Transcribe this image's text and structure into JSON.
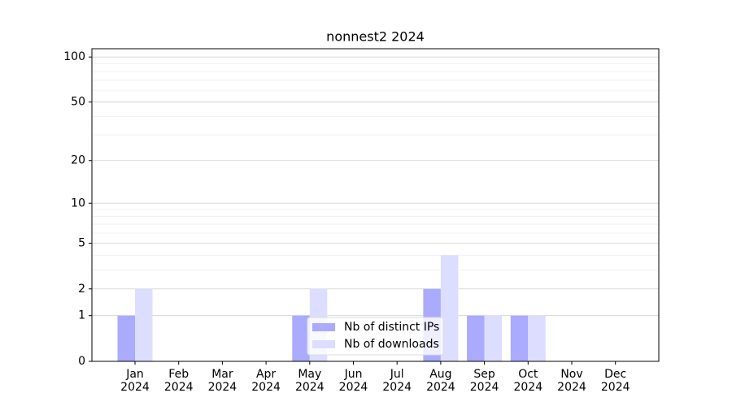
{
  "chart_data": {
    "type": "bar",
    "title": "nonnest2 2024",
    "categories": [
      "Jan 2024",
      "Feb 2024",
      "Mar 2024",
      "Apr 2024",
      "May 2024",
      "Jun 2024",
      "Jul 2024",
      "Aug 2024",
      "Sep 2024",
      "Oct 2024",
      "Nov 2024",
      "Dec 2024"
    ],
    "series": [
      {
        "name": "Nb of distinct IPs",
        "color": "#aaaaff",
        "values": [
          1,
          0,
          0,
          0,
          1,
          0,
          0,
          2,
          1,
          1,
          0,
          0
        ]
      },
      {
        "name": "Nb of downloads",
        "color": "#ddddff",
        "values": [
          2,
          0,
          0,
          0,
          2,
          0,
          0,
          4,
          1,
          1,
          0,
          0
        ]
      }
    ],
    "yscale": "log1p",
    "ylim": [
      0,
      113.5
    ],
    "yticks": [
      0,
      1,
      2,
      5,
      10,
      20,
      50,
      100
    ],
    "yminorticks": [
      3,
      4,
      6,
      7,
      8,
      9,
      30,
      40,
      60,
      70,
      80,
      90
    ],
    "grid": true,
    "legend": "lower center"
  }
}
